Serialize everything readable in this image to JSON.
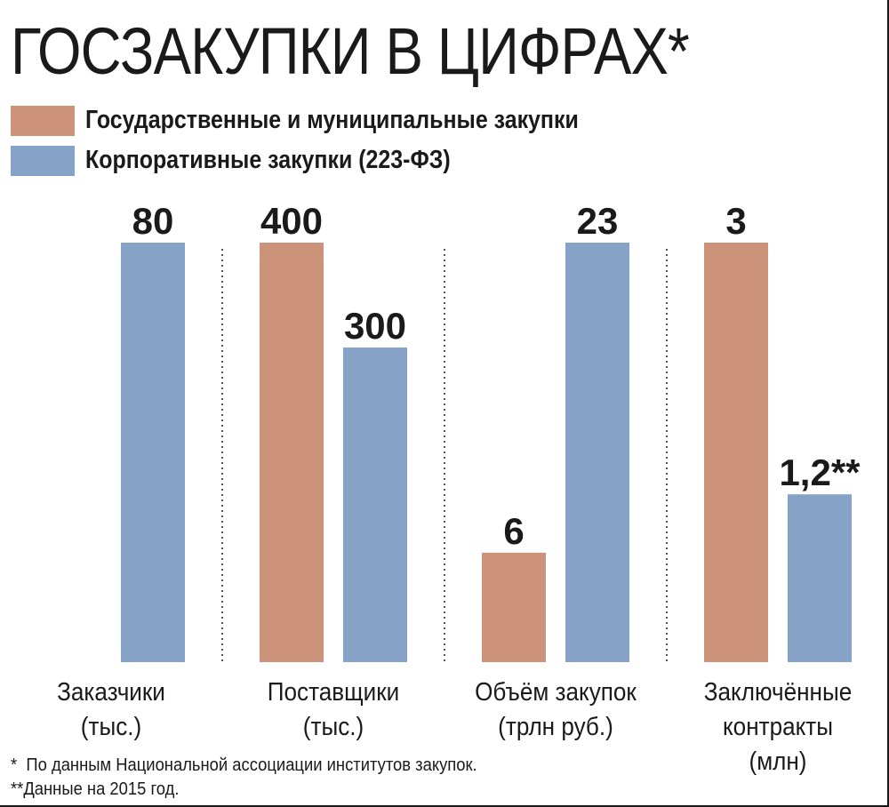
{
  "title": "ГОСЗАКУПКИ В ЦИФРАХ*",
  "legend": [
    {
      "label": "Государственные и муниципальные закупки",
      "color": "#cc937a"
    },
    {
      "label": "Корпоративные закупки (223-ФЗ)",
      "color": "#86a3c7"
    }
  ],
  "chart_data": {
    "type": "bar",
    "title": "ГОСЗАКУПКИ В ЦИФРАХ*",
    "categories": [
      "Заказчики\n(тыс.)",
      "Поставщики\n(тыс.)",
      "Объём закупок\n(трлн руб.)",
      "Заключённые\nконтракты\n(млн)"
    ],
    "series": [
      {
        "name": "Государственные и муниципальные закупки",
        "color": "#cc937a",
        "values": [
          null,
          400,
          6,
          3
        ],
        "labels": [
          "",
          "400",
          "6",
          "3"
        ]
      },
      {
        "name": "Корпоративные закупки (223-ФЗ)",
        "color": "#86a3c7",
        "values": [
          80,
          300,
          23,
          1.2
        ],
        "labels": [
          "80",
          "300",
          "23",
          "1,2**"
        ]
      }
    ],
    "note": "each category uses its own scale",
    "grid": false,
    "legend_position": "top-left"
  },
  "footnotes": [
    "*  По данным Национальной ассоциации институтов закупок.",
    "**Данные на 2015 год."
  ]
}
